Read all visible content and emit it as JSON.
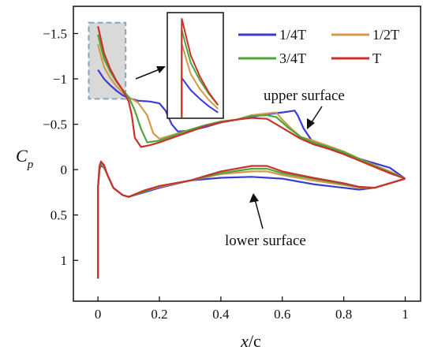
{
  "chart_data": {
    "type": "line",
    "title": "",
    "xlabel_main": "x",
    "xlabel_suffix": "/c",
    "ylabel_main": "C",
    "ylabel_sub": "p",
    "xlim": [
      -0.08,
      1.05
    ],
    "ylim": [
      1.45,
      -1.8
    ],
    "y_inverted": true,
    "grid": false,
    "legend_position": "top-right",
    "x_ticks": [
      {
        "value": 0,
        "label": "0"
      },
      {
        "value": 0.2,
        "label": "0.2"
      },
      {
        "value": 0.4,
        "label": "0.4"
      },
      {
        "value": 0.6,
        "label": "0.6"
      },
      {
        "value": 0.8,
        "label": "0.8"
      },
      {
        "value": 1,
        "label": "1"
      }
    ],
    "y_ticks": [
      {
        "value": -1.5,
        "label": "−1.5"
      },
      {
        "value": -1,
        "label": "−1"
      },
      {
        "value": -0.5,
        "label": "−0.5"
      },
      {
        "value": 0,
        "label": "0"
      },
      {
        "value": 0.5,
        "label": "0.5"
      },
      {
        "value": 1,
        "label": "1"
      }
    ],
    "annotations": {
      "upper": "upper surface",
      "lower": "lower surface"
    },
    "inset_region": {
      "x": [
        -0.03,
        0.09
      ],
      "y": [
        -1.62,
        -0.78
      ]
    },
    "series": [
      {
        "name": "1/4T",
        "color": "#3a3ad6",
        "upper": [
          [
            0,
            -1.1
          ],
          [
            0.01,
            -1.05
          ],
          [
            0.02,
            -1.0
          ],
          [
            0.04,
            -0.93
          ],
          [
            0.06,
            -0.87
          ],
          [
            0.08,
            -0.82
          ],
          [
            0.1,
            -0.79
          ],
          [
            0.13,
            -0.76
          ],
          [
            0.17,
            -0.75
          ],
          [
            0.2,
            -0.73
          ],
          [
            0.22,
            -0.65
          ],
          [
            0.24,
            -0.5
          ],
          [
            0.26,
            -0.42
          ],
          [
            0.3,
            -0.43
          ],
          [
            0.35,
            -0.47
          ],
          [
            0.4,
            -0.52
          ],
          [
            0.45,
            -0.55
          ],
          [
            0.5,
            -0.58
          ],
          [
            0.55,
            -0.61
          ],
          [
            0.6,
            -0.63
          ],
          [
            0.64,
            -0.65
          ],
          [
            0.65,
            -0.6
          ],
          [
            0.67,
            -0.45
          ],
          [
            0.7,
            -0.3
          ],
          [
            0.75,
            -0.24
          ],
          [
            0.8,
            -0.18
          ],
          [
            0.85,
            -0.12
          ],
          [
            0.9,
            -0.07
          ],
          [
            0.95,
            -0.02
          ],
          [
            1,
            0.1
          ]
        ],
        "lower": [
          [
            0,
            1.2
          ],
          [
            0.0,
            0.2
          ],
          [
            0.005,
            0.0
          ],
          [
            0.01,
            -0.05
          ],
          [
            0.02,
            -0.02
          ],
          [
            0.03,
            0.05
          ],
          [
            0.05,
            0.2
          ],
          [
            0.08,
            0.28
          ],
          [
            0.1,
            0.3
          ],
          [
            0.15,
            0.25
          ],
          [
            0.2,
            0.2
          ],
          [
            0.3,
            0.12
          ],
          [
            0.4,
            0.09
          ],
          [
            0.5,
            0.08
          ],
          [
            0.6,
            0.1
          ],
          [
            0.7,
            0.16
          ],
          [
            0.8,
            0.2
          ],
          [
            0.85,
            0.22
          ],
          [
            0.9,
            0.2
          ],
          [
            0.95,
            0.15
          ],
          [
            1,
            0.1
          ]
        ]
      },
      {
        "name": "1/2T",
        "color": "#d49a4a",
        "upper": [
          [
            0,
            -1.38
          ],
          [
            0.01,
            -1.25
          ],
          [
            0.02,
            -1.13
          ],
          [
            0.04,
            -1.01
          ],
          [
            0.06,
            -0.92
          ],
          [
            0.08,
            -0.85
          ],
          [
            0.1,
            -0.8
          ],
          [
            0.13,
            -0.74
          ],
          [
            0.16,
            -0.6
          ],
          [
            0.18,
            -0.4
          ],
          [
            0.2,
            -0.34
          ],
          [
            0.25,
            -0.39
          ],
          [
            0.3,
            -0.44
          ],
          [
            0.35,
            -0.49
          ],
          [
            0.4,
            -0.53
          ],
          [
            0.45,
            -0.55
          ],
          [
            0.5,
            -0.6
          ],
          [
            0.55,
            -0.62
          ],
          [
            0.58,
            -0.63
          ],
          [
            0.6,
            -0.55
          ],
          [
            0.63,
            -0.45
          ],
          [
            0.66,
            -0.36
          ],
          [
            0.7,
            -0.32
          ],
          [
            0.75,
            -0.26
          ],
          [
            0.8,
            -0.2
          ],
          [
            0.85,
            -0.12
          ],
          [
            0.9,
            -0.05
          ],
          [
            0.95,
            0.02
          ],
          [
            1,
            0.1
          ]
        ],
        "lower": [
          [
            0,
            1.2
          ],
          [
            0.0,
            0.2
          ],
          [
            0.005,
            -0.02
          ],
          [
            0.01,
            -0.07
          ],
          [
            0.02,
            -0.03
          ],
          [
            0.03,
            0.05
          ],
          [
            0.05,
            0.2
          ],
          [
            0.08,
            0.28
          ],
          [
            0.1,
            0.3
          ],
          [
            0.15,
            0.24
          ],
          [
            0.2,
            0.19
          ],
          [
            0.3,
            0.12
          ],
          [
            0.4,
            0.05
          ],
          [
            0.5,
            0.02
          ],
          [
            0.55,
            0.02
          ],
          [
            0.6,
            0.06
          ],
          [
            0.7,
            0.12
          ],
          [
            0.8,
            0.17
          ],
          [
            0.85,
            0.2
          ],
          [
            0.9,
            0.2
          ],
          [
            0.95,
            0.15
          ],
          [
            1,
            0.1
          ]
        ]
      },
      {
        "name": "3/4T",
        "color": "#4aa83a",
        "upper": [
          [
            0,
            -1.49
          ],
          [
            0.01,
            -1.35
          ],
          [
            0.02,
            -1.22
          ],
          [
            0.04,
            -1.08
          ],
          [
            0.06,
            -0.97
          ],
          [
            0.08,
            -0.88
          ],
          [
            0.1,
            -0.8
          ],
          [
            0.12,
            -0.65
          ],
          [
            0.14,
            -0.45
          ],
          [
            0.16,
            -0.3
          ],
          [
            0.2,
            -0.32
          ],
          [
            0.25,
            -0.38
          ],
          [
            0.3,
            -0.44
          ],
          [
            0.35,
            -0.49
          ],
          [
            0.4,
            -0.53
          ],
          [
            0.45,
            -0.55
          ],
          [
            0.5,
            -0.59
          ],
          [
            0.55,
            -0.6
          ],
          [
            0.58,
            -0.58
          ],
          [
            0.62,
            -0.46
          ],
          [
            0.66,
            -0.36
          ],
          [
            0.7,
            -0.3
          ],
          [
            0.75,
            -0.25
          ],
          [
            0.8,
            -0.19
          ],
          [
            0.85,
            -0.12
          ],
          [
            0.9,
            -0.04
          ],
          [
            0.95,
            0.03
          ],
          [
            1,
            0.1
          ]
        ],
        "lower": [
          [
            0,
            1.2
          ],
          [
            0.0,
            0.2
          ],
          [
            0.005,
            -0.03
          ],
          [
            0.01,
            -0.08
          ],
          [
            0.02,
            -0.04
          ],
          [
            0.03,
            0.05
          ],
          [
            0.05,
            0.2
          ],
          [
            0.08,
            0.28
          ],
          [
            0.1,
            0.3
          ],
          [
            0.15,
            0.24
          ],
          [
            0.2,
            0.18
          ],
          [
            0.3,
            0.12
          ],
          [
            0.4,
            0.04
          ],
          [
            0.5,
            -0.01
          ],
          [
            0.55,
            -0.01
          ],
          [
            0.6,
            0.04
          ],
          [
            0.7,
            0.1
          ],
          [
            0.8,
            0.16
          ],
          [
            0.85,
            0.19
          ],
          [
            0.9,
            0.2
          ],
          [
            0.95,
            0.15
          ],
          [
            1,
            0.1
          ]
        ]
      },
      {
        "name": "T",
        "color": "#c8322a",
        "upper": [
          [
            0,
            -1.58
          ],
          [
            0.01,
            -1.43
          ],
          [
            0.02,
            -1.28
          ],
          [
            0.04,
            -1.11
          ],
          [
            0.06,
            -0.98
          ],
          [
            0.08,
            -0.88
          ],
          [
            0.1,
            -0.75
          ],
          [
            0.11,
            -0.6
          ],
          [
            0.12,
            -0.35
          ],
          [
            0.14,
            -0.25
          ],
          [
            0.17,
            -0.27
          ],
          [
            0.2,
            -0.3
          ],
          [
            0.25,
            -0.36
          ],
          [
            0.3,
            -0.42
          ],
          [
            0.35,
            -0.48
          ],
          [
            0.4,
            -0.52
          ],
          [
            0.45,
            -0.55
          ],
          [
            0.5,
            -0.57
          ],
          [
            0.55,
            -0.56
          ],
          [
            0.58,
            -0.5
          ],
          [
            0.62,
            -0.42
          ],
          [
            0.66,
            -0.34
          ],
          [
            0.7,
            -0.28
          ],
          [
            0.75,
            -0.23
          ],
          [
            0.8,
            -0.17
          ],
          [
            0.85,
            -0.1
          ],
          [
            0.9,
            -0.03
          ],
          [
            0.95,
            0.04
          ],
          [
            1,
            0.1
          ]
        ],
        "lower": [
          [
            0,
            1.2
          ],
          [
            0.0,
            0.2
          ],
          [
            0.005,
            -0.04
          ],
          [
            0.01,
            -0.09
          ],
          [
            0.02,
            -0.05
          ],
          [
            0.03,
            0.05
          ],
          [
            0.05,
            0.2
          ],
          [
            0.08,
            0.28
          ],
          [
            0.1,
            0.3
          ],
          [
            0.15,
            0.23
          ],
          [
            0.2,
            0.18
          ],
          [
            0.3,
            0.12
          ],
          [
            0.4,
            0.02
          ],
          [
            0.5,
            -0.04
          ],
          [
            0.55,
            -0.04
          ],
          [
            0.6,
            0.02
          ],
          [
            0.7,
            0.09
          ],
          [
            0.8,
            0.15
          ],
          [
            0.85,
            0.19
          ],
          [
            0.9,
            0.2
          ],
          [
            0.95,
            0.15
          ],
          [
            1,
            0.1
          ]
        ]
      }
    ]
  }
}
